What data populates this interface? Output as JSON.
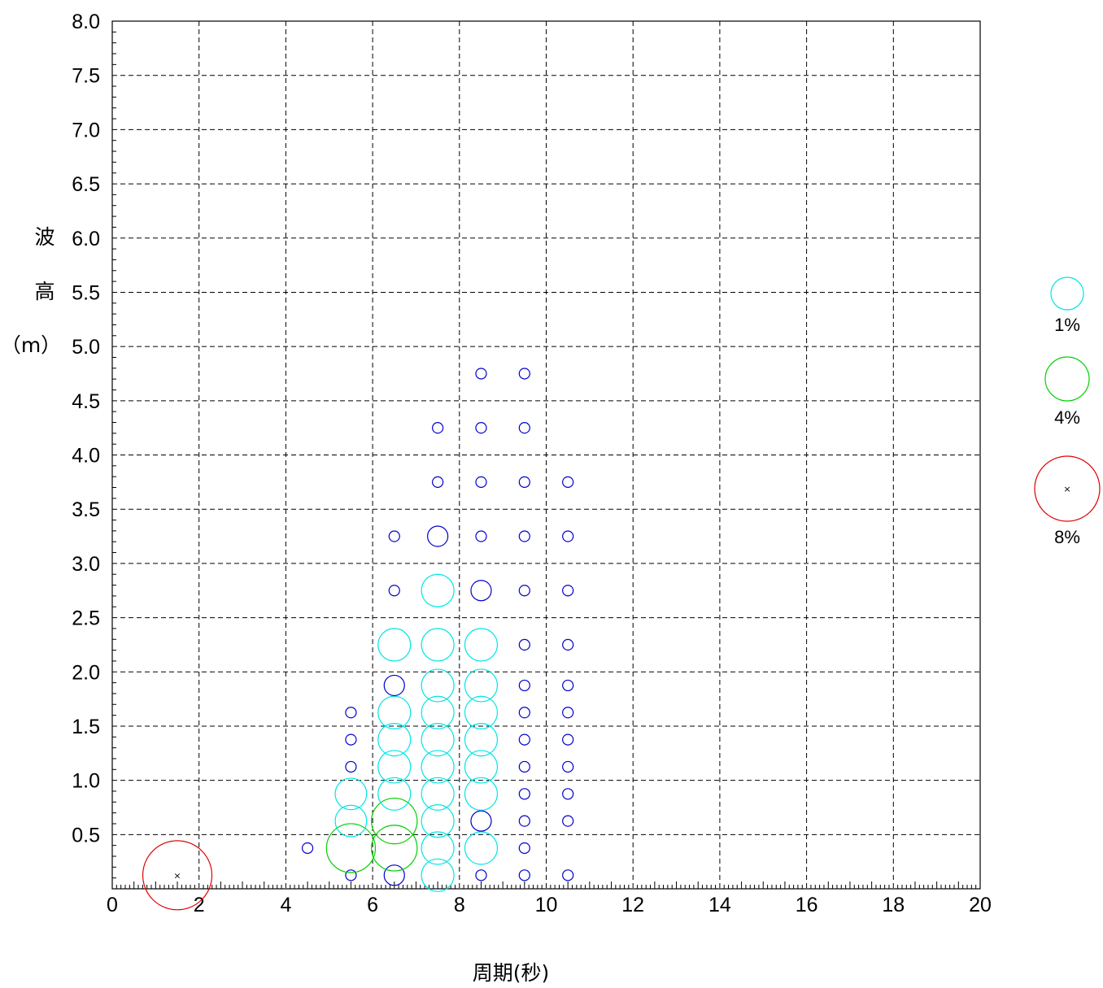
{
  "chart_data": {
    "type": "scatter",
    "title": "",
    "xlabel": "周期(秒)",
    "ylabel": [
      "波",
      "高",
      "（m）"
    ],
    "xlim": [
      0,
      20
    ],
    "ylim": [
      0,
      8
    ],
    "x_ticks": [
      "0",
      "2",
      "4",
      "6",
      "8",
      "10",
      "12",
      "14",
      "16",
      "18",
      "20"
    ],
    "y_ticks": [
      "0.5",
      "1.0",
      "1.5",
      "2.0",
      "2.5",
      "3.0",
      "3.5",
      "4.0",
      "4.5",
      "5.0",
      "5.5",
      "6.0",
      "6.5",
      "7.0",
      "7.5",
      "8.0"
    ],
    "grid": true,
    "legend_position": "right",
    "legend": [
      {
        "label": "1%",
        "percent": 1,
        "color": "#00e5e5"
      },
      {
        "label": "4%",
        "percent": 4,
        "color": "#00d000"
      },
      {
        "label": "8%",
        "percent": 8,
        "color": "#e00000",
        "center_marker": "×"
      }
    ],
    "points": [
      {
        "x": 1.5,
        "y": 0.125,
        "percent": 8,
        "color": "#e00000",
        "center_marker": "×"
      },
      {
        "x": 4.5,
        "y": 0.375,
        "percent": 0.15,
        "color": "#0000cc"
      },
      {
        "x": 5.5,
        "y": 0.125,
        "percent": 0.15,
        "color": "#0000cc"
      },
      {
        "x": 5.5,
        "y": 0.375,
        "percent": 4,
        "color": "#00d000"
      },
      {
        "x": 5.5,
        "y": 0.625,
        "percent": 1.5,
        "color": "#00e5e5"
      },
      {
        "x": 5.5,
        "y": 0.875,
        "percent": 1.5,
        "color": "#00e5e5"
      },
      {
        "x": 5.5,
        "y": 1.125,
        "percent": 0.15,
        "color": "#0000cc"
      },
      {
        "x": 5.5,
        "y": 1.375,
        "percent": 0.15,
        "color": "#0000cc"
      },
      {
        "x": 5.5,
        "y": 1.625,
        "percent": 0.15,
        "color": "#0000cc"
      },
      {
        "x": 6.5,
        "y": 0.125,
        "percent": 0.6,
        "color": "#0000cc"
      },
      {
        "x": 6.5,
        "y": 0.375,
        "percent": 3.5,
        "color": "#00d000"
      },
      {
        "x": 6.5,
        "y": 0.625,
        "percent": 3.5,
        "color": "#00d000"
      },
      {
        "x": 6.5,
        "y": 0.875,
        "percent": 1.6,
        "color": "#00e5e5"
      },
      {
        "x": 6.5,
        "y": 1.125,
        "percent": 1.6,
        "color": "#00e5e5"
      },
      {
        "x": 6.5,
        "y": 1.375,
        "percent": 1.6,
        "color": "#00e5e5"
      },
      {
        "x": 6.5,
        "y": 1.625,
        "percent": 1.6,
        "color": "#00e5e5"
      },
      {
        "x": 6.5,
        "y": 1.875,
        "percent": 0.6,
        "color": "#0000cc"
      },
      {
        "x": 6.5,
        "y": 2.25,
        "percent": 1.6,
        "color": "#00e5e5"
      },
      {
        "x": 6.5,
        "y": 2.75,
        "percent": 0.15,
        "color": "#0000cc"
      },
      {
        "x": 6.5,
        "y": 3.25,
        "percent": 0.15,
        "color": "#0000cc"
      },
      {
        "x": 7.5,
        "y": 0.125,
        "percent": 1.6,
        "color": "#00e5e5"
      },
      {
        "x": 7.5,
        "y": 0.375,
        "percent": 1.6,
        "color": "#00e5e5"
      },
      {
        "x": 7.5,
        "y": 0.625,
        "percent": 1.6,
        "color": "#00e5e5"
      },
      {
        "x": 7.5,
        "y": 0.875,
        "percent": 1.6,
        "color": "#00e5e5"
      },
      {
        "x": 7.5,
        "y": 1.125,
        "percent": 1.6,
        "color": "#00e5e5"
      },
      {
        "x": 7.5,
        "y": 1.375,
        "percent": 1.6,
        "color": "#00e5e5"
      },
      {
        "x": 7.5,
        "y": 1.625,
        "percent": 1.6,
        "color": "#00e5e5"
      },
      {
        "x": 7.5,
        "y": 1.875,
        "percent": 1.6,
        "color": "#00e5e5"
      },
      {
        "x": 7.5,
        "y": 2.25,
        "percent": 1.6,
        "color": "#00e5e5"
      },
      {
        "x": 7.5,
        "y": 2.75,
        "percent": 1.6,
        "color": "#00e5e5"
      },
      {
        "x": 7.5,
        "y": 3.25,
        "percent": 0.6,
        "color": "#0000cc"
      },
      {
        "x": 7.5,
        "y": 3.75,
        "percent": 0.15,
        "color": "#0000cc"
      },
      {
        "x": 7.5,
        "y": 4.25,
        "percent": 0.15,
        "color": "#0000cc"
      },
      {
        "x": 8.5,
        "y": 0.125,
        "percent": 0.15,
        "color": "#0000cc"
      },
      {
        "x": 8.5,
        "y": 0.375,
        "percent": 1.6,
        "color": "#00e5e5"
      },
      {
        "x": 8.5,
        "y": 0.625,
        "percent": 0.6,
        "color": "#0000cc"
      },
      {
        "x": 8.5,
        "y": 0.875,
        "percent": 1.6,
        "color": "#00e5e5"
      },
      {
        "x": 8.5,
        "y": 1.125,
        "percent": 1.6,
        "color": "#00e5e5"
      },
      {
        "x": 8.5,
        "y": 1.375,
        "percent": 1.6,
        "color": "#00e5e5"
      },
      {
        "x": 8.5,
        "y": 1.625,
        "percent": 1.6,
        "color": "#00e5e5"
      },
      {
        "x": 8.5,
        "y": 1.875,
        "percent": 1.6,
        "color": "#00e5e5"
      },
      {
        "x": 8.5,
        "y": 2.25,
        "percent": 1.6,
        "color": "#00e5e5"
      },
      {
        "x": 8.5,
        "y": 2.75,
        "percent": 0.6,
        "color": "#0000cc"
      },
      {
        "x": 8.5,
        "y": 3.25,
        "percent": 0.15,
        "color": "#0000cc"
      },
      {
        "x": 8.5,
        "y": 3.75,
        "percent": 0.15,
        "color": "#0000cc"
      },
      {
        "x": 8.5,
        "y": 4.25,
        "percent": 0.15,
        "color": "#0000cc"
      },
      {
        "x": 8.5,
        "y": 4.75,
        "percent": 0.15,
        "color": "#0000cc"
      },
      {
        "x": 9.5,
        "y": 0.125,
        "percent": 0.15,
        "color": "#0000cc"
      },
      {
        "x": 9.5,
        "y": 0.375,
        "percent": 0.15,
        "color": "#0000cc"
      },
      {
        "x": 9.5,
        "y": 0.625,
        "percent": 0.15,
        "color": "#0000cc"
      },
      {
        "x": 9.5,
        "y": 0.875,
        "percent": 0.15,
        "color": "#0000cc"
      },
      {
        "x": 9.5,
        "y": 1.125,
        "percent": 0.15,
        "color": "#0000cc"
      },
      {
        "x": 9.5,
        "y": 1.375,
        "percent": 0.15,
        "color": "#0000cc"
      },
      {
        "x": 9.5,
        "y": 1.625,
        "percent": 0.15,
        "color": "#0000cc"
      },
      {
        "x": 9.5,
        "y": 1.875,
        "percent": 0.15,
        "color": "#0000cc"
      },
      {
        "x": 9.5,
        "y": 2.25,
        "percent": 0.15,
        "color": "#0000cc"
      },
      {
        "x": 9.5,
        "y": 2.75,
        "percent": 0.15,
        "color": "#0000cc"
      },
      {
        "x": 9.5,
        "y": 3.25,
        "percent": 0.15,
        "color": "#0000cc"
      },
      {
        "x": 9.5,
        "y": 3.75,
        "percent": 0.15,
        "color": "#0000cc"
      },
      {
        "x": 9.5,
        "y": 4.25,
        "percent": 0.15,
        "color": "#0000cc"
      },
      {
        "x": 9.5,
        "y": 4.75,
        "percent": 0.15,
        "color": "#0000cc"
      },
      {
        "x": 10.5,
        "y": 0.125,
        "percent": 0.15,
        "color": "#0000cc"
      },
      {
        "x": 10.5,
        "y": 0.625,
        "percent": 0.15,
        "color": "#0000cc"
      },
      {
        "x": 10.5,
        "y": 0.875,
        "percent": 0.15,
        "color": "#0000cc"
      },
      {
        "x": 10.5,
        "y": 1.125,
        "percent": 0.15,
        "color": "#0000cc"
      },
      {
        "x": 10.5,
        "y": 1.375,
        "percent": 0.15,
        "color": "#0000cc"
      },
      {
        "x": 10.5,
        "y": 1.625,
        "percent": 0.15,
        "color": "#0000cc"
      },
      {
        "x": 10.5,
        "y": 1.875,
        "percent": 0.15,
        "color": "#0000cc"
      },
      {
        "x": 10.5,
        "y": 2.25,
        "percent": 0.15,
        "color": "#0000cc"
      },
      {
        "x": 10.5,
        "y": 2.75,
        "percent": 0.15,
        "color": "#0000cc"
      },
      {
        "x": 10.5,
        "y": 3.25,
        "percent": 0.15,
        "color": "#0000cc"
      },
      {
        "x": 10.5,
        "y": 3.75,
        "percent": 0.15,
        "color": "#0000cc"
      }
    ]
  }
}
